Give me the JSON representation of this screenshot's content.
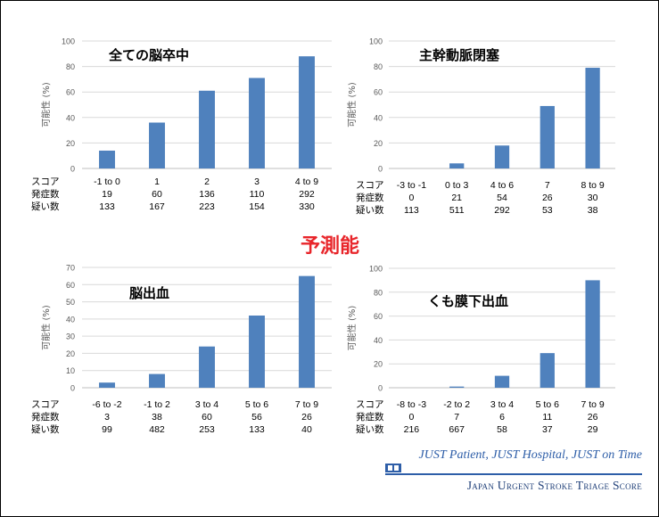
{
  "center_title": "予測能",
  "footer": {
    "slogan": "JUST Patient, JUST Hospital, JUST on Time",
    "name": "Japan Urgent Stroke Triage Score"
  },
  "colors": {
    "bar": "#4f81bd",
    "title": "#e8252a",
    "footer": "#2e5ea8"
  },
  "row_labels": [
    "スコア",
    "発症数",
    "疑い数"
  ],
  "chart_data": [
    {
      "type": "bar",
      "title": "全ての脳卒中",
      "ylabel": "可能性 (%)",
      "ylim": [
        0,
        100
      ],
      "yticks": [
        0,
        20,
        40,
        60,
        80,
        100
      ],
      "categories": [
        "-1 to 0",
        "1",
        "2",
        "3",
        "4 to 9"
      ],
      "values": [
        14,
        36,
        61,
        71,
        88
      ],
      "onset": [
        "19",
        "60",
        "136",
        "110",
        "292"
      ],
      "suspected": [
        "133",
        "167",
        "223",
        "154",
        "330"
      ]
    },
    {
      "type": "bar",
      "title": "主幹動脈閉塞",
      "ylabel": "可能性 (%)",
      "ylim": [
        0,
        100
      ],
      "yticks": [
        0,
        20,
        40,
        60,
        80,
        100
      ],
      "categories": [
        "-3 to -1",
        "0 to 3",
        "4 to 6",
        "7",
        "8 to 9"
      ],
      "values": [
        0,
        4,
        18,
        49,
        79
      ],
      "onset": [
        "0",
        "21",
        "54",
        "26",
        "30"
      ],
      "suspected": [
        "113",
        "511",
        "292",
        "53",
        "38"
      ]
    },
    {
      "type": "bar",
      "title": "脳出血",
      "ylabel": "可能性 (%)",
      "ylim": [
        0,
        70
      ],
      "yticks": [
        0,
        10,
        20,
        30,
        40,
        50,
        60,
        70
      ],
      "categories": [
        "-6 to -2",
        "-1 to 2",
        "3 to 4",
        "5 to 6",
        "7 to 9"
      ],
      "values": [
        3,
        8,
        24,
        42,
        65
      ],
      "onset": [
        "3",
        "38",
        "60",
        "56",
        "26"
      ],
      "suspected": [
        "99",
        "482",
        "253",
        "133",
        "40"
      ]
    },
    {
      "type": "bar",
      "title": "くも膜下出血",
      "ylabel": "可能性 (%)",
      "ylim": [
        0,
        100
      ],
      "yticks": [
        0,
        20,
        40,
        60,
        80,
        100
      ],
      "categories": [
        "-8 to -3",
        "-2 to 2",
        "3 to 4",
        "5 to 6",
        "7 to 9"
      ],
      "values": [
        0,
        1,
        10,
        29,
        90
      ],
      "onset": [
        "0",
        "7",
        "6",
        "11",
        "26"
      ],
      "suspected": [
        "216",
        "667",
        "58",
        "37",
        "29"
      ]
    }
  ]
}
